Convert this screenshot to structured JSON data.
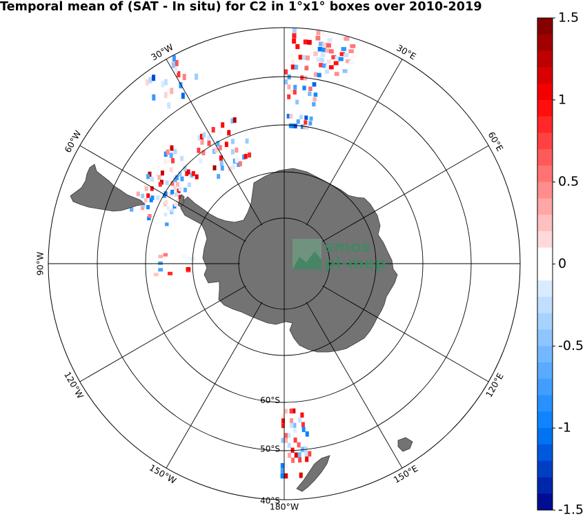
{
  "title": "Temporal mean of (SAT - In situ) for C2 in 1°x1° boxes over 2010-2019",
  "projection": "south-polar-stereographic",
  "longitude_labels": [
    {
      "deg": -180,
      "text": "180°W"
    },
    {
      "deg": -150,
      "text": "150°W"
    },
    {
      "deg": -120,
      "text": "120°W"
    },
    {
      "deg": -90,
      "text": "90°W"
    },
    {
      "deg": -60,
      "text": "60°W"
    },
    {
      "deg": -30,
      "text": "30°W"
    },
    {
      "deg": 30,
      "text": "30°E"
    },
    {
      "deg": 60,
      "text": "60°E"
    },
    {
      "deg": 120,
      "text": "120°E"
    },
    {
      "deg": 150,
      "text": "150°E"
    }
  ],
  "latitude_labels": [
    {
      "deg": -60,
      "text": "60°S"
    },
    {
      "deg": -50,
      "text": "50°S"
    },
    {
      "deg": -40,
      "text": "40°S"
    }
  ],
  "colorbar": {
    "min": -1.5,
    "max": 1.5,
    "ticks": [
      {
        "value": 1.5,
        "label": "1.5"
      },
      {
        "value": 1,
        "label": "1"
      },
      {
        "value": 0.5,
        "label": "0.5"
      },
      {
        "value": 0,
        "label": "0"
      },
      {
        "value": -0.5,
        "label": "-0.5"
      },
      {
        "value": -1,
        "label": "-1"
      },
      {
        "value": -1.5,
        "label": "-1.5"
      }
    ],
    "colormap": "blue-white-red",
    "land_color": "#737373"
  },
  "watermark": {
    "line1": "smos",
    "line2": "pi-mep",
    "color": "#3f8a63"
  }
}
